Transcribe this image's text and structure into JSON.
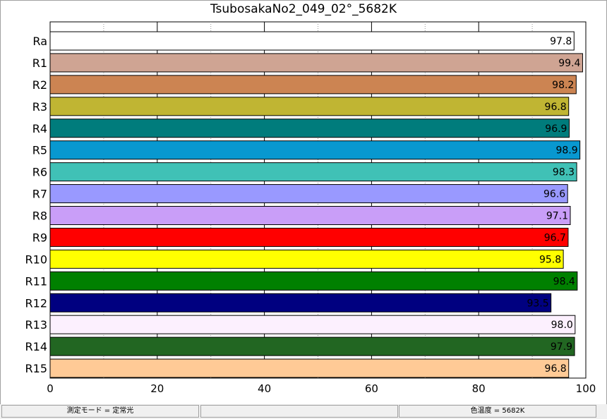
{
  "chart_data": {
    "type": "bar",
    "orientation": "horizontal",
    "title": "TsubosakaNo2_049_02°_5682K",
    "xlabel": "",
    "ylabel": "",
    "xlim": [
      0,
      100
    ],
    "x_ticks": [
      0,
      20,
      40,
      60,
      80,
      100
    ],
    "minor_grid_ticks": [
      10,
      30,
      50,
      70,
      90
    ],
    "grid": true,
    "categories": [
      "Ra",
      "R1",
      "R2",
      "R3",
      "R4",
      "R5",
      "R6",
      "R7",
      "R8",
      "R9",
      "R10",
      "R11",
      "R12",
      "R13",
      "R14",
      "R15"
    ],
    "values": [
      97.8,
      99.4,
      98.2,
      96.8,
      96.9,
      98.9,
      98.3,
      96.6,
      97.1,
      96.7,
      95.8,
      98.4,
      93.5,
      98.0,
      97.9,
      96.8
    ],
    "value_labels": [
      "97.8",
      "99.4",
      "98.2",
      "96.8",
      "96.9",
      "98.9",
      "98.3",
      "96.6",
      "97.1",
      "96.7",
      "95.8",
      "98.4",
      "93.5",
      "98.0",
      "97.9",
      "96.8"
    ],
    "bar_colors": [
      "#ffffff",
      "#cfa493",
      "#cc8452",
      "#c0b533",
      "#007c7c",
      "#0898d0",
      "#40c1b6",
      "#9999ff",
      "#c99ef8",
      "#ff0000",
      "#ffff00",
      "#008000",
      "#000080",
      "#fcf0fe",
      "#226622",
      "#ffca96"
    ]
  },
  "status_bar": {
    "mode": "測定モード = 定常光",
    "middle": "",
    "cct": "色温度 = 5682K"
  }
}
